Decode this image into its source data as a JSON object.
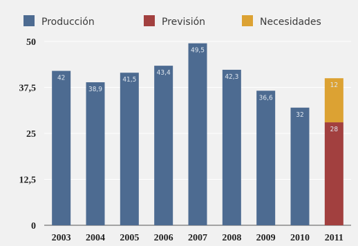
{
  "colors": {
    "produccion": "#4d6b91",
    "prevision": "#a2403f",
    "necesidades": "#dca233",
    "background": "#f1f1f1"
  },
  "chart_data": {
    "type": "bar",
    "stacked": true,
    "title": "",
    "xlabel": "",
    "ylabel": "",
    "ylim": [
      0,
      50
    ],
    "yticks": [
      "0",
      "12,5",
      "25",
      "37,5",
      "50"
    ],
    "ytick_values": [
      0,
      12.5,
      25,
      37.5,
      50
    ],
    "grid": true,
    "legend_position": "top",
    "categories": [
      "2003",
      "2004",
      "2005",
      "2006",
      "2007",
      "2008",
      "2009",
      "2010",
      "2011"
    ],
    "series": [
      {
        "name": "Producción",
        "color": "#4d6b91",
        "values": [
          42,
          38.9,
          41.5,
          43.4,
          49.5,
          42.3,
          36.6,
          32,
          null
        ],
        "labels": [
          "42",
          "38,9",
          "41,5",
          "43,4",
          "49,5",
          "42,3",
          "36,6",
          "32",
          ""
        ]
      },
      {
        "name": "Previsión",
        "color": "#a2403f",
        "values": [
          null,
          null,
          null,
          null,
          null,
          null,
          null,
          null,
          28
        ],
        "labels": [
          "",
          "",
          "",
          "",
          "",
          "",
          "",
          "",
          "28"
        ]
      },
      {
        "name": "Necesidades",
        "color": "#dca233",
        "values": [
          null,
          null,
          null,
          null,
          null,
          null,
          null,
          null,
          12
        ],
        "labels": [
          "",
          "",
          "",
          "",
          "",
          "",
          "",
          "",
          "12"
        ]
      }
    ]
  }
}
